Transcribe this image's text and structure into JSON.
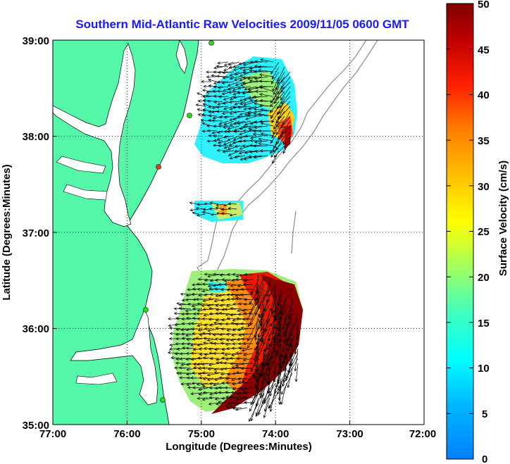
{
  "title": "Southern Mid-Atlantic Raw Velocities 2009/11/05 0600 GMT",
  "x_axis": {
    "label": "Longitude (Degrees:Minutes)",
    "ticks": [
      "77:00",
      "76:00",
      "75:00",
      "74:00",
      "73:00",
      "72:00"
    ]
  },
  "y_axis": {
    "label": "Latitude (Degrees:Minutes)",
    "ticks": [
      "39:00",
      "38:00",
      "37:00",
      "36:00",
      "35:00"
    ]
  },
  "colorbar": {
    "label": "Surface Velocity (cm/s)",
    "ticks": [
      "50",
      "45",
      "40",
      "35",
      "30",
      "25",
      "20",
      "15",
      "10",
      "5",
      "0"
    ],
    "min": 0,
    "max": 50,
    "colormap": "jet"
  },
  "map": {
    "lon_range": [
      -77,
      -72
    ],
    "lat_range": [
      35,
      39
    ],
    "land_color": "#55f7a8",
    "coastline_color": "#000000",
    "bathymetry_color": "#8c8c8c",
    "grid": "dotted"
  },
  "colors": {
    "title": "#1a1aff",
    "station_marker": "#22dd22",
    "station_marker_active": "#ee3322"
  }
}
